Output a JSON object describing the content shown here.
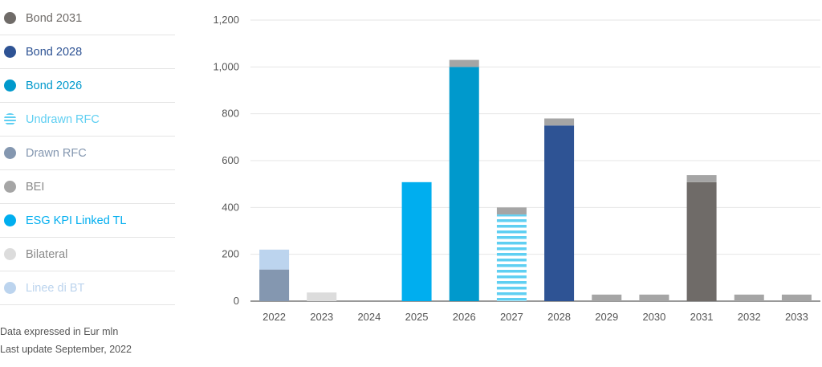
{
  "legend": [
    {
      "key": "bond2031",
      "label": "Bond 2031",
      "color": "#6f6b68",
      "pattern": "solid"
    },
    {
      "key": "bond2028",
      "label": "Bond 2028",
      "color": "#2e5394",
      "pattern": "solid"
    },
    {
      "key": "bond2026",
      "label": "Bond 2026",
      "color": "#0099cc",
      "pattern": "solid"
    },
    {
      "key": "undrawn_rfc",
      "label": "Undrawn RFC",
      "color": "#5fcff2",
      "pattern": "stripes"
    },
    {
      "key": "drawn_rfc",
      "label": "Drawn RFC",
      "color": "#8497b0",
      "pattern": "solid"
    },
    {
      "key": "bei",
      "label": "BEI",
      "color": "#a5a5a5",
      "pattern": "solid"
    },
    {
      "key": "esg",
      "label": "ESG KPI Linked TL",
      "color": "#00aeef",
      "pattern": "solid"
    },
    {
      "key": "bilateral",
      "label": "Bilateral",
      "color": "#dcdcdc",
      "pattern": "solid"
    },
    {
      "key": "linee_bt",
      "label": "Linee di BT",
      "color": "#bcd4ee",
      "pattern": "solid"
    }
  ],
  "notes": {
    "line1": "Data expressed in Eur mln",
    "line2": "Last update September, 2022"
  },
  "chart_data": {
    "type": "bar",
    "stacked": true,
    "categories": [
      "2022",
      "2023",
      "2024",
      "2025",
      "2026",
      "2027",
      "2028",
      "2029",
      "2030",
      "2031",
      "2032",
      "2033"
    ],
    "ylim": [
      0,
      1200
    ],
    "yticks": [
      0,
      200,
      400,
      600,
      800,
      1000,
      1200
    ],
    "ytick_labels": [
      "0",
      "200",
      "400",
      "600",
      "800",
      "1,000",
      "1,200"
    ],
    "grid": true,
    "series": [
      {
        "name": "Drawn RFC",
        "key": "drawn_rfc",
        "values": [
          135,
          0,
          0,
          0,
          0,
          0,
          0,
          0,
          0,
          0,
          0,
          0
        ]
      },
      {
        "name": "Linee di BT",
        "key": "linee_bt",
        "values": [
          85,
          0,
          0,
          0,
          0,
          0,
          0,
          0,
          0,
          0,
          0,
          0
        ]
      },
      {
        "name": "Bilateral",
        "key": "bilateral",
        "values": [
          0,
          37,
          0,
          0,
          0,
          0,
          0,
          0,
          0,
          0,
          0,
          0
        ]
      },
      {
        "name": "ESG KPI Linked TL",
        "key": "esg",
        "values": [
          0,
          0,
          0,
          508,
          0,
          0,
          0,
          0,
          0,
          0,
          0,
          0
        ]
      },
      {
        "name": "Bond 2026",
        "key": "bond2026",
        "values": [
          0,
          0,
          0,
          0,
          1000,
          0,
          0,
          0,
          0,
          0,
          0,
          0
        ]
      },
      {
        "name": "Undrawn RFC",
        "key": "undrawn_rfc",
        "values": [
          0,
          0,
          0,
          0,
          0,
          370,
          0,
          0,
          0,
          0,
          0,
          0
        ]
      },
      {
        "name": "Bond 2028",
        "key": "bond2028",
        "values": [
          0,
          0,
          0,
          0,
          0,
          0,
          750,
          0,
          0,
          0,
          0,
          0
        ]
      },
      {
        "name": "Bond 2031",
        "key": "bond2031",
        "values": [
          0,
          0,
          0,
          0,
          0,
          0,
          0,
          0,
          0,
          508,
          0,
          0
        ]
      },
      {
        "name": "BEI",
        "key": "bei",
        "values": [
          0,
          0,
          0,
          0,
          30,
          30,
          30,
          28,
          28,
          30,
          28,
          28
        ]
      }
    ]
  }
}
